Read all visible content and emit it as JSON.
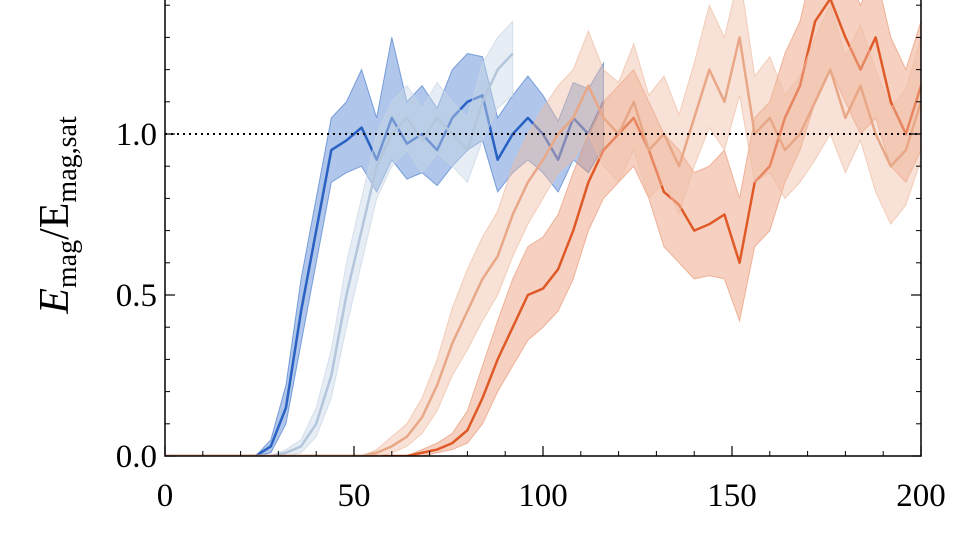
{
  "chart_data": {
    "type": "line",
    "ylabel_parts": [
      "E",
      "mag",
      "/E",
      "mag,sat"
    ],
    "x": [
      0,
      4,
      8,
      12,
      16,
      20,
      24,
      28,
      32,
      36,
      40,
      44,
      48,
      52,
      56,
      60,
      64,
      68,
      72,
      76,
      80,
      84,
      88,
      92,
      96,
      100,
      104,
      108,
      112,
      116,
      120,
      124,
      128,
      132,
      136,
      140,
      144,
      148,
      152,
      156,
      160,
      164,
      168,
      172,
      176,
      180,
      184,
      188,
      192,
      196,
      200
    ],
    "xlim": [
      0,
      200
    ],
    "xticks": [
      0,
      50,
      100,
      150,
      200
    ],
    "ylim": [
      0,
      1.42
    ],
    "yticks": [
      {
        "value": 0,
        "label": "0.0"
      },
      {
        "value": 0.5,
        "label": "0.5"
      },
      {
        "value": 1,
        "label": "1.0"
      }
    ],
    "hline": 1,
    "series": [
      {
        "color": "#2a62c4",
        "band_color": "#4f80d0",
        "values": [
          0,
          0,
          0,
          0,
          0,
          0,
          0,
          0.03,
          0.15,
          0.45,
          0.7,
          0.95,
          0.98,
          1.02,
          0.92,
          1.05,
          0.97,
          1.0,
          0.95,
          1.05,
          1.1,
          1.12,
          0.92,
          1.0,
          1.05,
          1.0,
          0.92,
          1.05,
          1.0,
          1.1,
          null,
          null,
          null,
          null,
          null,
          null,
          null,
          null,
          null,
          null,
          null,
          null,
          null,
          null,
          null,
          null,
          null,
          null,
          null,
          null,
          null
        ],
        "lower": [
          0,
          0,
          0,
          0,
          0,
          0,
          0,
          0.01,
          0.1,
          0.35,
          0.6,
          0.85,
          0.88,
          0.9,
          0.82,
          0.92,
          0.86,
          0.88,
          0.84,
          0.9,
          0.95,
          0.98,
          0.82,
          0.88,
          0.92,
          0.88,
          0.82,
          0.92,
          0.88,
          0.96,
          null,
          null,
          null,
          null,
          null,
          null,
          null,
          null,
          null,
          null,
          null,
          null,
          null,
          null,
          null,
          null,
          null,
          null,
          null,
          null,
          null
        ],
        "upper": [
          0,
          0,
          0,
          0,
          0,
          0,
          0,
          0.05,
          0.22,
          0.55,
          0.8,
          1.05,
          1.1,
          1.2,
          1.05,
          1.3,
          1.1,
          1.15,
          1.08,
          1.2,
          1.25,
          1.24,
          1.05,
          1.12,
          1.18,
          1.12,
          1.04,
          1.16,
          1.14,
          1.22,
          null,
          null,
          null,
          null,
          null,
          null,
          null,
          null,
          null,
          null,
          null,
          null,
          null,
          null,
          null,
          null,
          null,
          null,
          null,
          null,
          null
        ]
      },
      {
        "color": "#b4c6dc",
        "band_color": "#c8d6e6",
        "values": [
          0,
          0,
          0,
          0,
          0,
          0,
          0,
          0,
          0.01,
          0.03,
          0.1,
          0.25,
          0.5,
          0.7,
          0.9,
          1.0,
          1.05,
          0.98,
          1.05,
          1.0,
          0.95,
          1.1,
          1.2,
          1.25,
          null,
          null,
          null,
          null,
          null,
          null,
          null,
          null,
          null,
          null,
          null,
          null,
          null,
          null,
          null,
          null,
          null,
          null,
          null,
          null,
          null,
          null,
          null,
          null,
          null,
          null,
          null
        ],
        "lower": [
          0,
          0,
          0,
          0,
          0,
          0,
          0,
          0,
          0,
          0.01,
          0.06,
          0.18,
          0.4,
          0.6,
          0.8,
          0.9,
          0.95,
          0.88,
          0.94,
          0.9,
          0.85,
          0.98,
          1.08,
          1.12,
          null,
          null,
          null,
          null,
          null,
          null,
          null,
          null,
          null,
          null,
          null,
          null,
          null,
          null,
          null,
          null,
          null,
          null,
          null,
          null,
          null,
          null,
          null,
          null,
          null,
          null,
          null
        ],
        "upper": [
          0,
          0,
          0,
          0,
          0,
          0,
          0,
          0,
          0.02,
          0.05,
          0.15,
          0.33,
          0.6,
          0.8,
          1.0,
          1.1,
          1.15,
          1.08,
          1.16,
          1.1,
          1.05,
          1.22,
          1.3,
          1.35,
          null,
          null,
          null,
          null,
          null,
          null,
          null,
          null,
          null,
          null,
          null,
          null,
          null,
          null,
          null,
          null,
          null,
          null,
          null,
          null,
          null,
          null,
          null,
          null,
          null,
          null,
          null
        ]
      },
      {
        "color": "#e05a28",
        "band_color": "#eb9a78",
        "values": [
          0,
          0,
          0,
          0,
          0,
          0,
          0,
          0,
          0,
          0,
          0,
          0,
          0,
          0,
          0,
          0,
          0,
          0.01,
          0.02,
          0.04,
          0.08,
          0.18,
          0.3,
          0.4,
          0.5,
          0.52,
          0.58,
          0.7,
          0.85,
          0.95,
          1.0,
          1.05,
          0.95,
          0.82,
          0.78,
          0.7,
          0.72,
          0.75,
          0.6,
          0.85,
          0.9,
          1.05,
          1.15,
          1.35,
          1.42,
          1.3,
          1.2,
          1.3,
          1.1,
          1.0,
          1.15
        ],
        "lower": [
          0,
          0,
          0,
          0,
          0,
          0,
          0,
          0,
          0,
          0,
          0,
          0,
          0,
          0,
          0,
          0,
          0,
          0,
          0.01,
          0.02,
          0.04,
          0.1,
          0.2,
          0.28,
          0.36,
          0.4,
          0.45,
          0.55,
          0.7,
          0.8,
          0.85,
          0.9,
          0.8,
          0.65,
          0.6,
          0.55,
          0.56,
          0.55,
          0.42,
          0.65,
          0.7,
          0.85,
          0.95,
          1.1,
          1.2,
          1.1,
          1.0,
          1.05,
          0.9,
          0.85,
          0.95
        ],
        "upper": [
          0,
          0,
          0,
          0,
          0,
          0,
          0,
          0,
          0,
          0,
          0,
          0,
          0,
          0,
          0,
          0,
          0,
          0.02,
          0.04,
          0.07,
          0.14,
          0.28,
          0.42,
          0.55,
          0.65,
          0.68,
          0.75,
          0.88,
          1.0,
          1.1,
          1.15,
          1.2,
          1.1,
          1.0,
          0.95,
          0.88,
          0.9,
          0.95,
          0.8,
          1.05,
          1.1,
          1.25,
          1.35,
          1.55,
          1.6,
          1.5,
          1.4,
          1.5,
          1.3,
          1.2,
          1.35
        ]
      },
      {
        "color": "#e8a888",
        "band_color": "#f0bda4",
        "values": [
          0,
          0,
          0,
          0,
          0,
          0,
          0,
          0,
          0,
          0,
          0,
          0,
          0,
          0,
          0.01,
          0.03,
          0.06,
          0.12,
          0.22,
          0.35,
          0.45,
          0.55,
          0.62,
          0.75,
          0.85,
          0.92,
          1.0,
          1.05,
          1.15,
          1.05,
          1.0,
          1.1,
          0.95,
          1.0,
          0.9,
          1.05,
          1.2,
          1.1,
          1.3,
          1.0,
          1.05,
          0.95,
          1.0,
          1.1,
          1.2,
          1.05,
          1.15,
          1.0,
          0.9,
          0.95,
          1.1
        ],
        "lower": [
          0,
          0,
          0,
          0,
          0,
          0,
          0,
          0,
          0,
          0,
          0,
          0,
          0,
          0,
          0,
          0.01,
          0.03,
          0.07,
          0.14,
          0.25,
          0.33,
          0.42,
          0.5,
          0.62,
          0.72,
          0.8,
          0.88,
          0.92,
          1.0,
          0.9,
          0.85,
          0.95,
          0.8,
          0.85,
          0.75,
          0.9,
          1.02,
          0.95,
          1.12,
          0.85,
          0.88,
          0.8,
          0.85,
          0.92,
          1.0,
          0.88,
          0.98,
          0.82,
          0.72,
          0.78,
          0.92
        ],
        "upper": [
          0,
          0,
          0,
          0,
          0,
          0,
          0,
          0,
          0,
          0,
          0,
          0,
          0,
          0,
          0.02,
          0.06,
          0.1,
          0.18,
          0.3,
          0.46,
          0.58,
          0.68,
          0.76,
          0.9,
          1.0,
          1.08,
          1.15,
          1.2,
          1.32,
          1.2,
          1.16,
          1.28,
          1.12,
          1.18,
          1.06,
          1.22,
          1.4,
          1.3,
          1.5,
          1.18,
          1.24,
          1.12,
          1.18,
          1.3,
          1.4,
          1.24,
          1.34,
          1.2,
          1.08,
          1.14,
          1.3
        ]
      }
    ]
  }
}
